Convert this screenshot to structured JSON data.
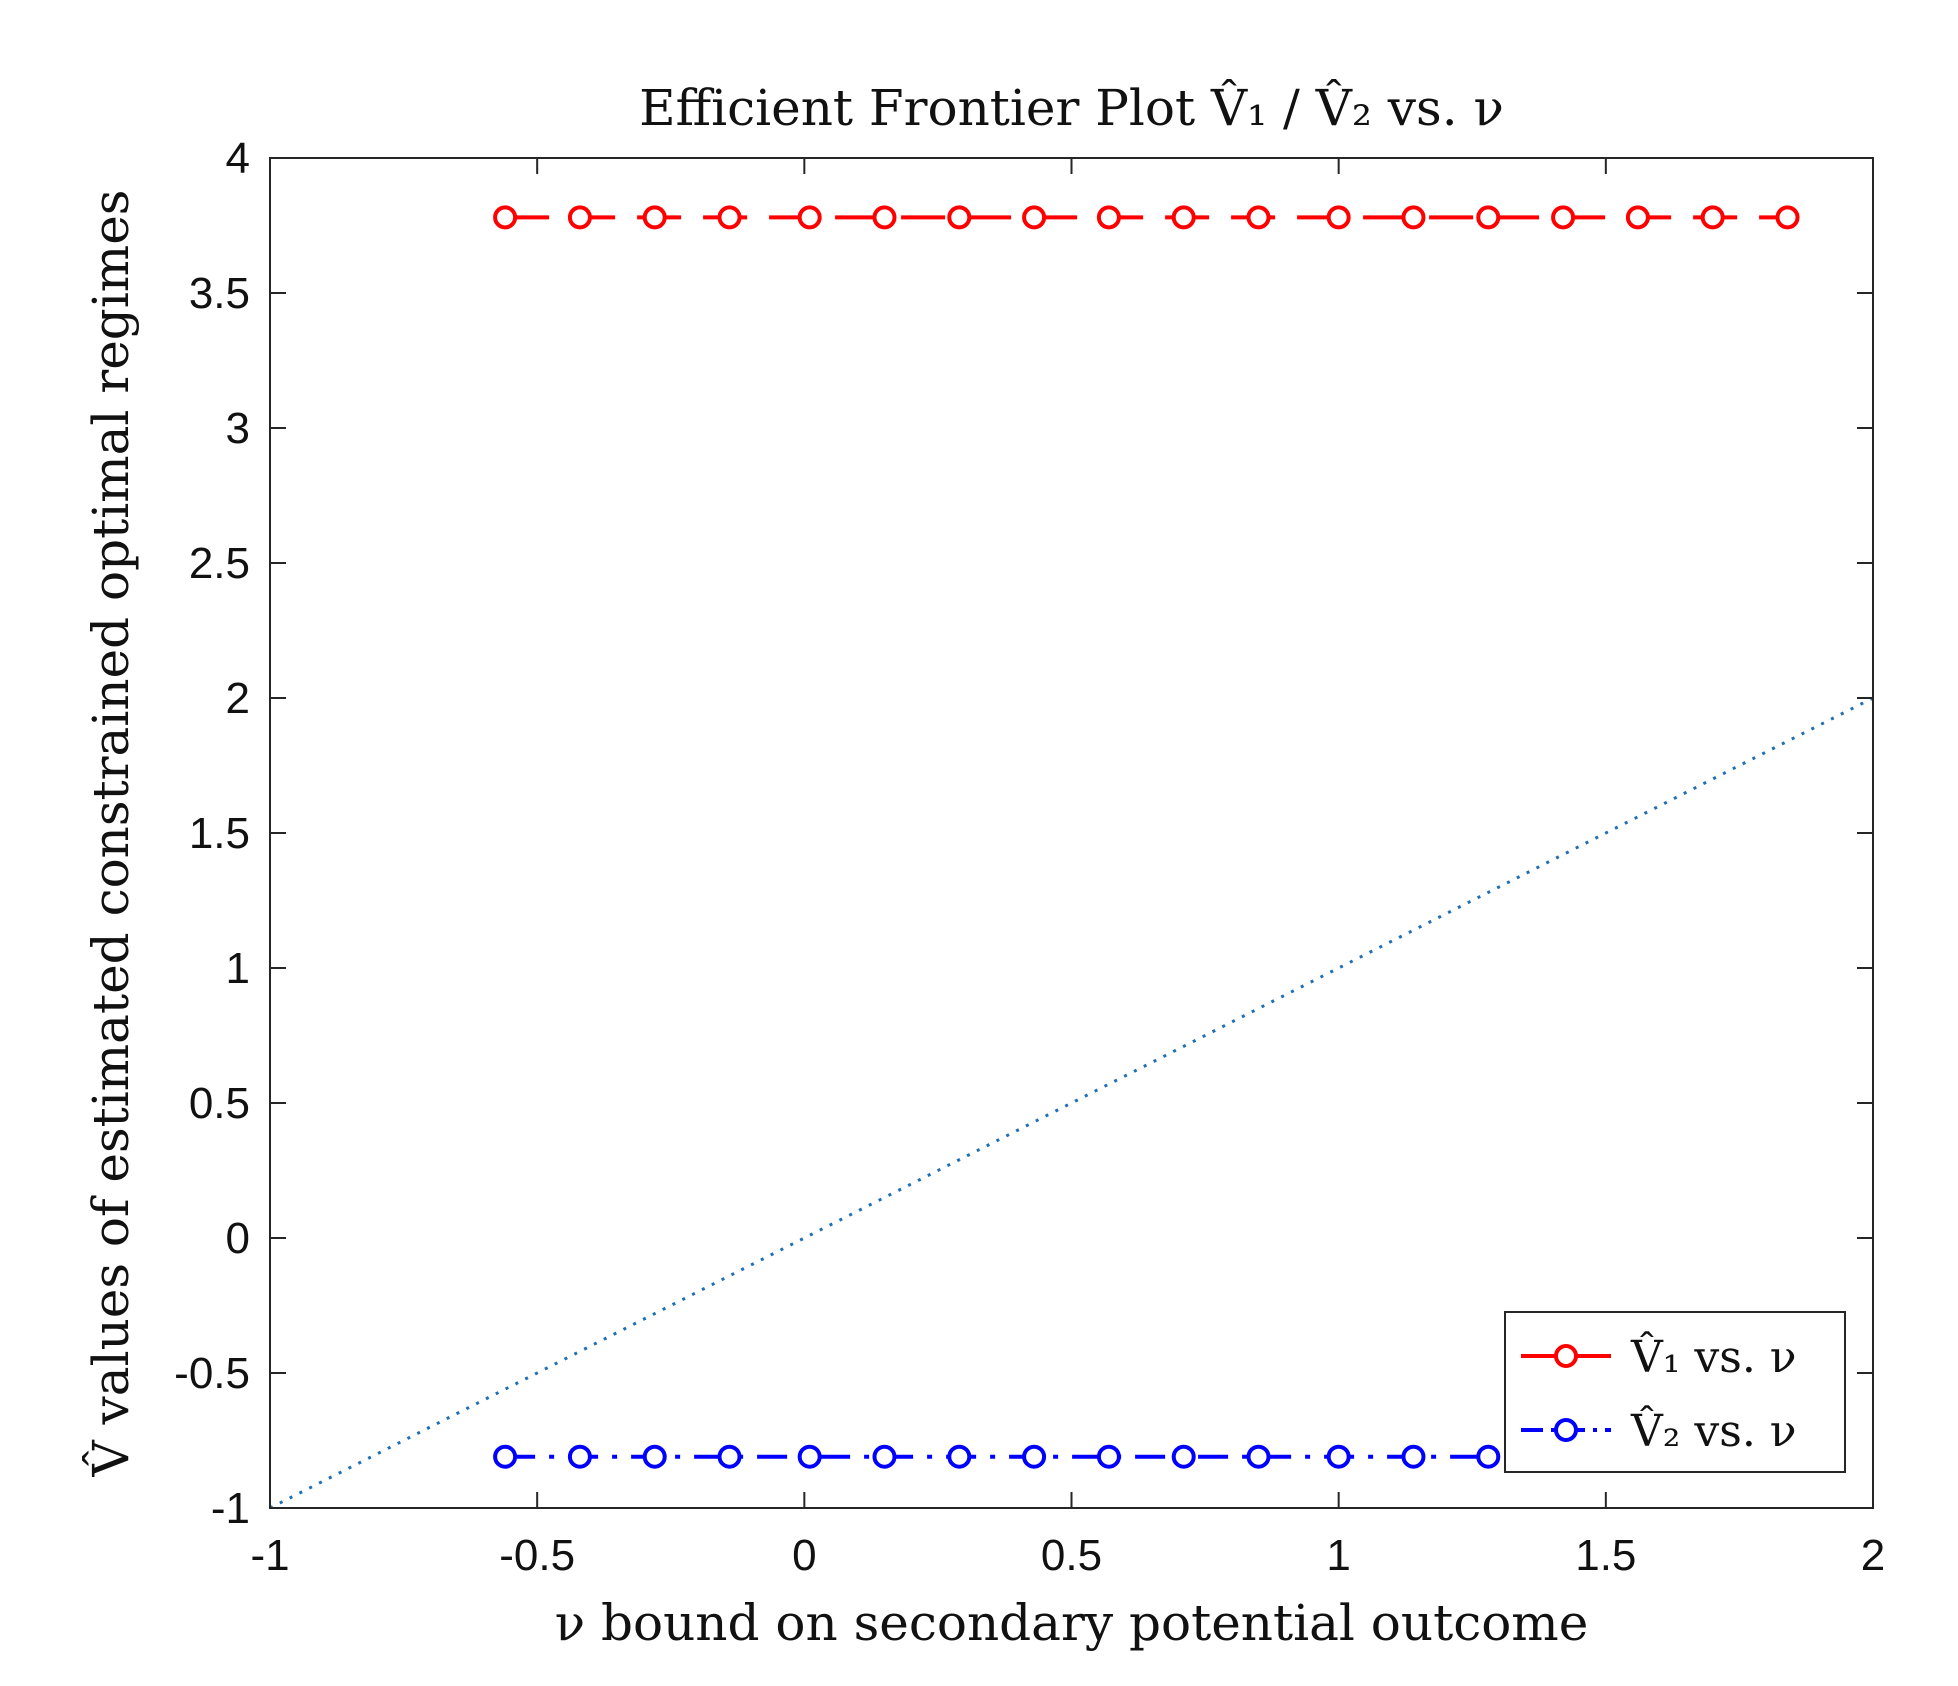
{
  "chart_data": {
    "type": "line",
    "title": "Efficient Frontier Plot V̂₁ / V̂₂ vs. ν",
    "xlabel": "ν bound on secondary potential outcome",
    "ylabel": "V̂ values of estimated constrained optimal regimes",
    "xlim": [
      -1,
      2
    ],
    "ylim": [
      -1,
      4
    ],
    "xticks": [
      -1,
      -0.5,
      0,
      0.5,
      1,
      1.5,
      2
    ],
    "xtick_labels": [
      "-1",
      "-0.5",
      "0",
      "0.5",
      "1",
      "1.5",
      "2"
    ],
    "yticks": [
      -1,
      -0.5,
      0,
      0.5,
      1,
      1.5,
      2,
      2.5,
      3,
      3.5,
      4
    ],
    "ytick_labels": [
      "-1",
      "-0.5",
      "0",
      "0.5",
      "1",
      "1.5",
      "2",
      "2.5",
      "3",
      "3.5",
      "4"
    ],
    "grid": false,
    "legend_position": "bottom-right",
    "x": [
      -0.56,
      -0.42,
      -0.28,
      -0.14,
      0.01,
      0.15,
      0.29,
      0.43,
      0.57,
      0.71,
      0.85,
      1.0,
      1.14,
      1.28,
      1.42,
      1.56,
      1.7,
      1.84
    ],
    "series": [
      {
        "name": "V̂₁ vs. ν",
        "legend_main": "V",
        "legend_sub": "1",
        "legend_rest": " vs. ν",
        "color": "#ff0000",
        "line_style": "dashed",
        "marker": "circle",
        "values": [
          3.78,
          3.78,
          3.78,
          3.78,
          3.78,
          3.78,
          3.78,
          3.78,
          3.78,
          3.78,
          3.78,
          3.78,
          3.78,
          3.78,
          3.78,
          3.78,
          3.78,
          3.78
        ]
      },
      {
        "name": "V̂₂ vs. ν",
        "legend_main": "V",
        "legend_sub": "2",
        "legend_rest": " vs. ν",
        "color": "#0000ff",
        "line_style": "dash-dot",
        "marker": "circle",
        "values": [
          -0.81,
          -0.81,
          -0.81,
          -0.81,
          -0.81,
          -0.81,
          -0.81,
          -0.81,
          -0.81,
          -0.81,
          -0.81,
          -0.81,
          -0.81,
          -0.81,
          -0.81,
          -0.81,
          -0.81,
          -0.81
        ]
      },
      {
        "name": "",
        "color": "#1f6fb5",
        "line_style": "dotted",
        "marker": "none",
        "x": [
          -1,
          2
        ],
        "values": [
          -1,
          2
        ]
      }
    ]
  }
}
